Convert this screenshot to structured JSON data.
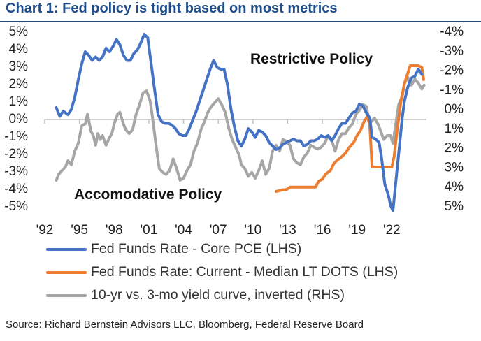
{
  "title": "Chart 1: Fed policy is tight based on most metrics",
  "source": "Source: Richard Bernstein Advisors LLC, Bloomberg, Federal Reserve Board",
  "chart_data": {
    "type": "line",
    "x_tick_labels": [
      "'92",
      "'95",
      "'98",
      "'01",
      "'04",
      "'07",
      "'10",
      "'13",
      "'16",
      "'19",
      "'22"
    ],
    "x_tick_years": [
      1992,
      1995,
      1998,
      2001,
      2004,
      2007,
      2010,
      2013,
      2016,
      2019,
      2022
    ],
    "xlim": [
      1992,
      2025
    ],
    "left_axis": {
      "ylim": [
        -5,
        5
      ],
      "ticks": [
        "5%",
        "4%",
        "3%",
        "2%",
        "1%",
        "0%",
        "-1%",
        "-2%",
        "-3%",
        "-4%",
        "-5%"
      ]
    },
    "right_axis": {
      "ylim": [
        5,
        -4
      ],
      "inverted": true,
      "ticks": [
        "-4%",
        "-3%",
        "-2%",
        "-1%",
        "0%",
        "1%",
        "2%",
        "3%",
        "4%",
        "5%"
      ]
    },
    "annotations": {
      "upper": "Restrictive Policy",
      "lower": "Accomodative Policy"
    },
    "series": [
      {
        "name": "Fed Funds Rate - Core PCE (LHS)",
        "axis": "left",
        "color": "#4472c4",
        "points": [
          [
            1993.0,
            0.6
          ],
          [
            1993.3,
            0.1
          ],
          [
            1993.6,
            0.4
          ],
          [
            1994.0,
            0.2
          ],
          [
            1994.3,
            0.5
          ],
          [
            1994.6,
            1.2
          ],
          [
            1994.9,
            2.2
          ],
          [
            1995.2,
            3.1
          ],
          [
            1995.5,
            3.8
          ],
          [
            1995.8,
            3.6
          ],
          [
            1996.1,
            3.3
          ],
          [
            1996.4,
            3.5
          ],
          [
            1996.7,
            3.3
          ],
          [
            1997.0,
            3.5
          ],
          [
            1997.3,
            4.0
          ],
          [
            1997.6,
            3.8
          ],
          [
            1997.9,
            4.1
          ],
          [
            1998.2,
            4.5
          ],
          [
            1998.5,
            4.2
          ],
          [
            1998.8,
            3.6
          ],
          [
            1999.1,
            3.3
          ],
          [
            1999.4,
            3.3
          ],
          [
            1999.7,
            3.7
          ],
          [
            2000.0,
            3.9
          ],
          [
            2000.3,
            4.3
          ],
          [
            2000.6,
            4.8
          ],
          [
            2000.9,
            4.6
          ],
          [
            2001.2,
            3.1
          ],
          [
            2001.5,
            1.6
          ],
          [
            2001.8,
            0.2
          ],
          [
            2002.1,
            -0.2
          ],
          [
            2002.4,
            -0.3
          ],
          [
            2002.7,
            -0.3
          ],
          [
            2003.0,
            -0.4
          ],
          [
            2003.3,
            -0.6
          ],
          [
            2003.6,
            -0.9
          ],
          [
            2003.9,
            -1.0
          ],
          [
            2004.2,
            -1.0
          ],
          [
            2004.5,
            -0.6
          ],
          [
            2004.8,
            -0.1
          ],
          [
            2005.1,
            0.4
          ],
          [
            2005.4,
            1.0
          ],
          [
            2005.7,
            1.6
          ],
          [
            2006.0,
            2.2
          ],
          [
            2006.3,
            2.8
          ],
          [
            2006.6,
            3.3
          ],
          [
            2006.9,
            2.9
          ],
          [
            2007.2,
            2.8
          ],
          [
            2007.5,
            2.8
          ],
          [
            2007.8,
            1.9
          ],
          [
            2008.1,
            0.5
          ],
          [
            2008.4,
            -0.5
          ],
          [
            2008.7,
            -1.3
          ],
          [
            2009.0,
            -1.6
          ],
          [
            2009.3,
            -1.2
          ],
          [
            2009.6,
            -0.6
          ],
          [
            2009.9,
            -0.8
          ],
          [
            2010.2,
            -1.1
          ],
          [
            2010.5,
            -0.7
          ],
          [
            2010.8,
            -0.8
          ],
          [
            2011.1,
            -1.0
          ],
          [
            2011.4,
            -1.4
          ],
          [
            2011.7,
            -1.6
          ],
          [
            2012.0,
            -1.8
          ],
          [
            2012.3,
            -1.7
          ],
          [
            2012.6,
            -1.5
          ],
          [
            2012.9,
            -1.4
          ],
          [
            2013.2,
            -1.3
          ],
          [
            2013.5,
            -1.2
          ],
          [
            2013.8,
            -1.3
          ],
          [
            2014.1,
            -1.3
          ],
          [
            2014.4,
            -1.6
          ],
          [
            2014.7,
            -1.5
          ],
          [
            2015.0,
            -1.3
          ],
          [
            2015.3,
            -1.3
          ],
          [
            2015.6,
            -1.2
          ],
          [
            2015.9,
            -1.0
          ],
          [
            2016.2,
            -1.1
          ],
          [
            2016.5,
            -1.0
          ],
          [
            2016.8,
            -1.3
          ],
          [
            2017.1,
            -1.0
          ],
          [
            2017.4,
            -0.6
          ],
          [
            2017.7,
            -0.3
          ],
          [
            2018.0,
            -0.3
          ],
          [
            2018.3,
            0.0
          ],
          [
            2018.6,
            0.3
          ],
          [
            2018.9,
            0.4
          ],
          [
            2019.2,
            0.8
          ],
          [
            2019.5,
            0.7
          ],
          [
            2019.8,
            0.3
          ],
          [
            2020.1,
            0.0
          ],
          [
            2020.3,
            -1.1
          ],
          [
            2020.6,
            -1.2
          ],
          [
            2020.9,
            -1.4
          ],
          [
            2021.1,
            -2.2
          ],
          [
            2021.4,
            -3.8
          ],
          [
            2021.7,
            -4.4
          ],
          [
            2021.9,
            -5.0
          ],
          [
            2022.1,
            -5.3
          ],
          [
            2022.3,
            -4.0
          ],
          [
            2022.6,
            -2.0
          ],
          [
            2022.9,
            0.0
          ],
          [
            2023.1,
            1.0
          ],
          [
            2023.4,
            1.8
          ],
          [
            2023.7,
            2.3
          ],
          [
            2024.0,
            2.4
          ],
          [
            2024.3,
            2.8
          ],
          [
            2024.6,
            2.5
          ]
        ]
      },
      {
        "name": "Fed Funds Rate: Current - Median LT DOTS (LHS)",
        "axis": "left",
        "color": "#ed7d31",
        "points": [
          [
            2012.0,
            -4.2
          ],
          [
            2012.3,
            -4.15
          ],
          [
            2012.6,
            -4.1
          ],
          [
            2012.9,
            -4.1
          ],
          [
            2013.2,
            -3.95
          ],
          [
            2014.0,
            -3.95
          ],
          [
            2014.8,
            -3.95
          ],
          [
            2015.4,
            -3.95
          ],
          [
            2015.7,
            -3.6
          ],
          [
            2016.0,
            -3.5
          ],
          [
            2016.3,
            -3.2
          ],
          [
            2016.7,
            -3.0
          ],
          [
            2017.0,
            -2.6
          ],
          [
            2017.3,
            -2.4
          ],
          [
            2017.7,
            -2.2
          ],
          [
            2018.0,
            -2.0
          ],
          [
            2018.3,
            -1.7
          ],
          [
            2018.7,
            -1.4
          ],
          [
            2019.0,
            -1.0
          ],
          [
            2019.3,
            -0.7
          ],
          [
            2019.6,
            -0.2
          ],
          [
            2019.9,
            0.1
          ],
          [
            2020.1,
            -0.4
          ],
          [
            2020.3,
            -2.8
          ],
          [
            2020.6,
            -2.8
          ],
          [
            2021.0,
            -2.8
          ],
          [
            2021.5,
            -2.8
          ],
          [
            2022.0,
            -2.8
          ],
          [
            2022.2,
            -2.2
          ],
          [
            2022.5,
            -0.5
          ],
          [
            2022.8,
            1.0
          ],
          [
            2023.1,
            2.0
          ],
          [
            2023.4,
            2.6
          ],
          [
            2023.6,
            3.0
          ],
          [
            2023.9,
            3.0
          ],
          [
            2024.3,
            3.0
          ],
          [
            2024.6,
            2.9
          ],
          [
            2024.75,
            2.2
          ]
        ]
      },
      {
        "name": "10-yr vs. 3-mo yield curve, inverted (RHS)",
        "axis": "right",
        "color": "#a6a6a6",
        "points": [
          [
            1993.0,
            3.7
          ],
          [
            1993.2,
            3.4
          ],
          [
            1993.5,
            3.2
          ],
          [
            1993.8,
            3.0
          ],
          [
            1994.0,
            2.7
          ],
          [
            1994.3,
            2.9
          ],
          [
            1994.6,
            2.2
          ],
          [
            1994.9,
            1.8
          ],
          [
            1995.2,
            0.9
          ],
          [
            1995.5,
            0.8
          ],
          [
            1995.7,
            0.3
          ],
          [
            1996.0,
            1.2
          ],
          [
            1996.2,
            1.4
          ],
          [
            1996.4,
            1.9
          ],
          [
            1996.6,
            1.3
          ],
          [
            1996.8,
            1.6
          ],
          [
            1997.0,
            1.4
          ],
          [
            1997.3,
            1.9
          ],
          [
            1997.6,
            1.5
          ],
          [
            1997.8,
            1.3
          ],
          [
            1998.0,
            0.8
          ],
          [
            1998.3,
            0.3
          ],
          [
            1998.5,
            0.2
          ],
          [
            1998.8,
            0.8
          ],
          [
            1999.0,
            1.1
          ],
          [
            1999.3,
            1.3
          ],
          [
            1999.6,
            1.1
          ],
          [
            1999.9,
            0.3
          ],
          [
            2000.2,
            -0.2
          ],
          [
            2000.5,
            -0.8
          ],
          [
            2000.8,
            -0.9
          ],
          [
            2001.1,
            -0.4
          ],
          [
            2001.3,
            0.4
          ],
          [
            2001.6,
            1.8
          ],
          [
            2001.9,
            3.1
          ],
          [
            2002.2,
            3.3
          ],
          [
            2002.5,
            3.4
          ],
          [
            2002.8,
            3.2
          ],
          [
            2003.1,
            2.6
          ],
          [
            2003.4,
            3.1
          ],
          [
            2003.7,
            3.7
          ],
          [
            2004.0,
            3.6
          ],
          [
            2004.3,
            3.2
          ],
          [
            2004.6,
            2.9
          ],
          [
            2004.9,
            2.2
          ],
          [
            2005.2,
            1.8
          ],
          [
            2005.5,
            1.1
          ],
          [
            2005.8,
            0.7
          ],
          [
            2006.1,
            0.2
          ],
          [
            2006.4,
            -0.1
          ],
          [
            2006.7,
            -0.3
          ],
          [
            2007.0,
            -0.5
          ],
          [
            2007.3,
            -0.2
          ],
          [
            2007.6,
            0.2
          ],
          [
            2007.9,
            1.0
          ],
          [
            2008.2,
            1.6
          ],
          [
            2008.5,
            2.0
          ],
          [
            2008.8,
            2.4
          ],
          [
            2009.0,
            2.9
          ],
          [
            2009.3,
            3.1
          ],
          [
            2009.6,
            3.5
          ],
          [
            2009.9,
            3.3
          ],
          [
            2010.2,
            3.6
          ],
          [
            2010.5,
            3.2
          ],
          [
            2010.8,
            2.7
          ],
          [
            2011.1,
            3.4
          ],
          [
            2011.4,
            3.1
          ],
          [
            2011.7,
            2.2
          ],
          [
            2012.0,
            1.9
          ],
          [
            2012.3,
            2.2
          ],
          [
            2012.6,
            1.6
          ],
          [
            2012.9,
            1.7
          ],
          [
            2013.2,
            1.9
          ],
          [
            2013.5,
            2.6
          ],
          [
            2013.8,
            2.8
          ],
          [
            2014.1,
            2.9
          ],
          [
            2014.4,
            2.5
          ],
          [
            2014.7,
            2.3
          ],
          [
            2015.0,
            1.9
          ],
          [
            2015.3,
            2.0
          ],
          [
            2015.6,
            2.1
          ],
          [
            2015.9,
            2.0
          ],
          [
            2016.2,
            1.8
          ],
          [
            2016.5,
            1.4
          ],
          [
            2016.8,
            1.6
          ],
          [
            2017.1,
            2.2
          ],
          [
            2017.4,
            1.6
          ],
          [
            2017.7,
            1.3
          ],
          [
            2018.0,
            1.3
          ],
          [
            2018.3,
            1.0
          ],
          [
            2018.6,
            0.8
          ],
          [
            2018.9,
            0.3
          ],
          [
            2019.2,
            0.1
          ],
          [
            2019.5,
            -0.2
          ],
          [
            2019.8,
            -0.1
          ],
          [
            2020.0,
            0.5
          ],
          [
            2020.2,
            0.7
          ],
          [
            2020.5,
            0.5
          ],
          [
            2020.8,
            0.8
          ],
          [
            2021.0,
            1.1
          ],
          [
            2021.3,
            1.6
          ],
          [
            2021.6,
            1.4
          ],
          [
            2021.9,
            1.4
          ],
          [
            2022.1,
            1.8
          ],
          [
            2022.3,
            1.0
          ],
          [
            2022.6,
            -0.2
          ],
          [
            2022.9,
            -0.6
          ],
          [
            2023.1,
            -1.3
          ],
          [
            2023.4,
            -1.6
          ],
          [
            2023.7,
            -1.2
          ],
          [
            2024.0,
            -1.5
          ],
          [
            2024.3,
            -1.3
          ],
          [
            2024.6,
            -1.0
          ],
          [
            2024.8,
            -1.2
          ]
        ]
      }
    ]
  }
}
